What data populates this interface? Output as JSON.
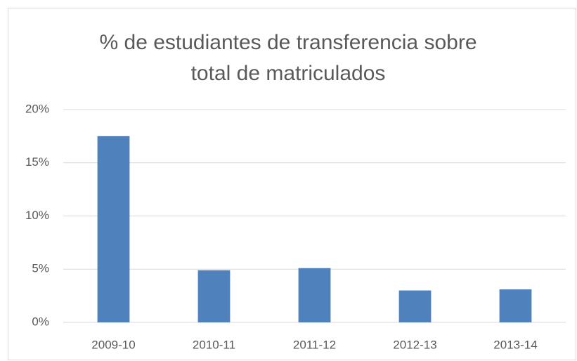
{
  "chart_data": {
    "type": "bar",
    "title": [
      "% de estudiantes de transferencia sobre",
      "total de matriculados"
    ],
    "categories": [
      "2009-10",
      "2010-11",
      "2011-12",
      "2012-13",
      "2013-14"
    ],
    "values": [
      17.5,
      4.9,
      5.1,
      3.0,
      3.1
    ],
    "color": "#4f81bd",
    "ylim": [
      0,
      20
    ],
    "yticks": [
      {
        "value": 0,
        "label": "0%"
      },
      {
        "value": 5,
        "label": "5%"
      },
      {
        "value": 10,
        "label": "10%"
      },
      {
        "value": 15,
        "label": "15%"
      },
      {
        "value": 20,
        "label": "20%"
      }
    ],
    "grid": true
  }
}
